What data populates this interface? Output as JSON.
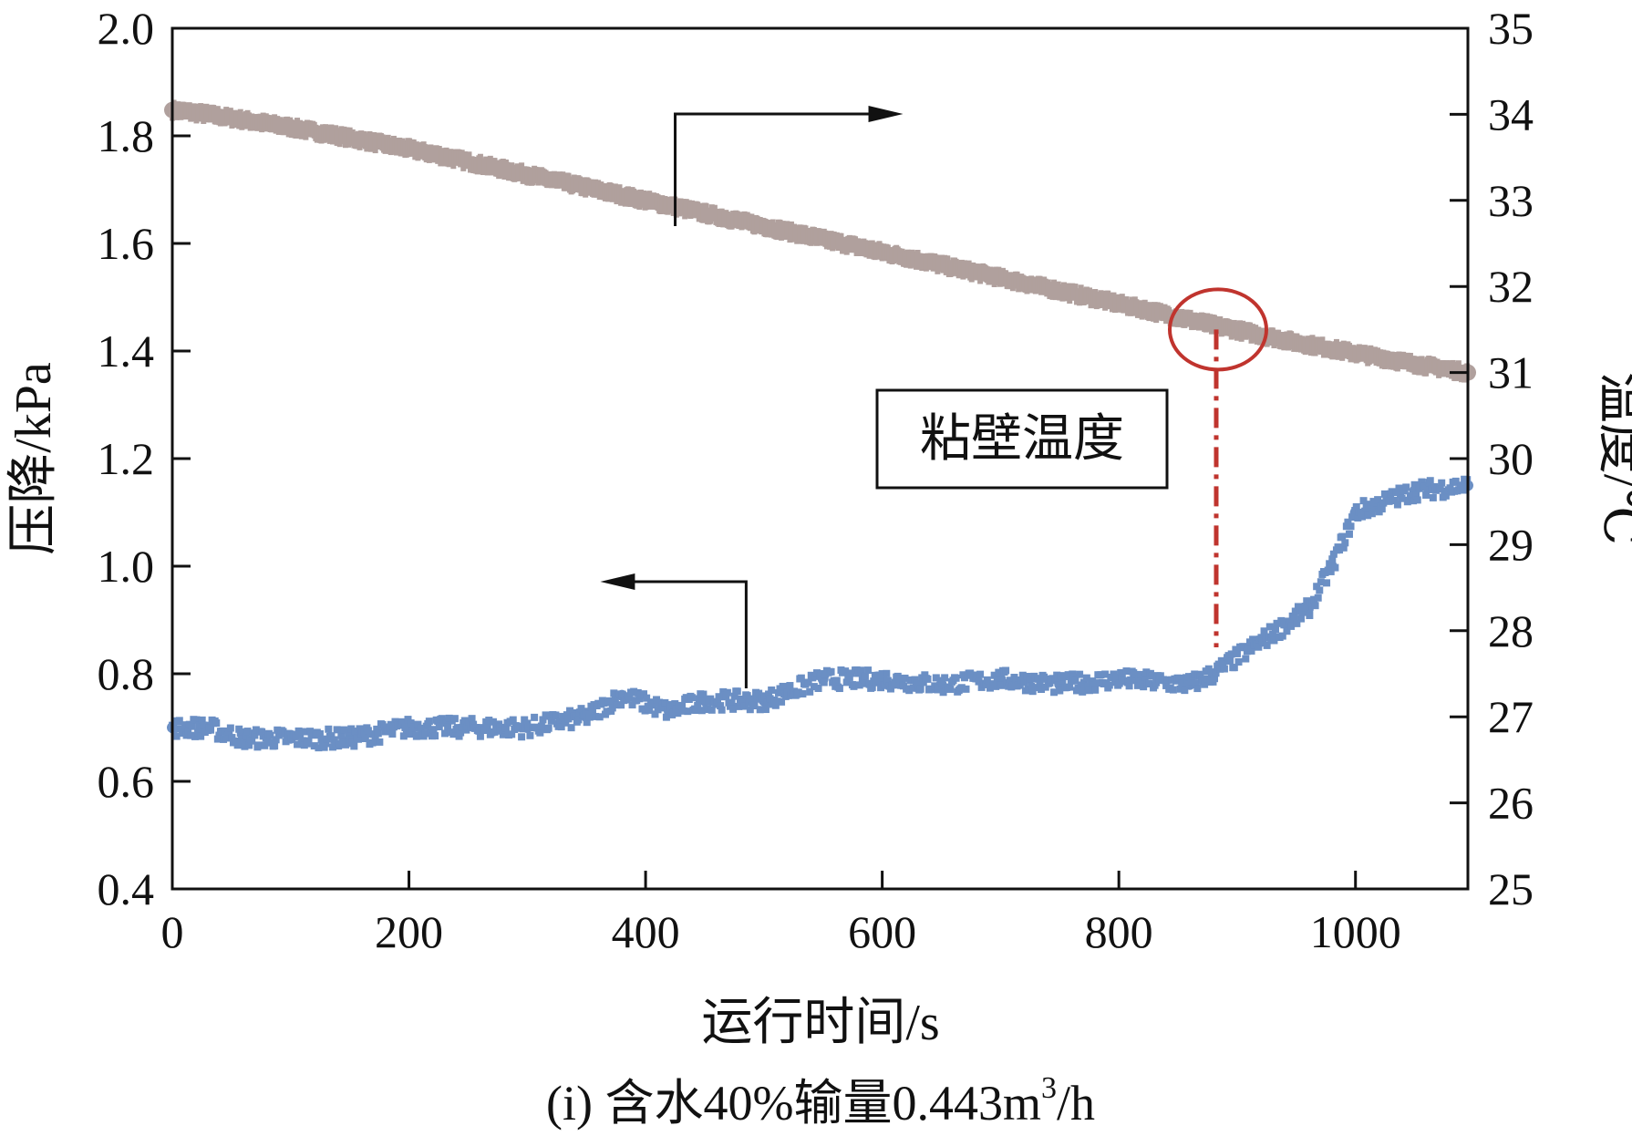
{
  "chart_data": {
    "type": "line",
    "title": "",
    "caption": "(i) 含水40%输量0.443m",
    "caption_sup": "3",
    "caption_tail": "/h",
    "xlabel": "运行时间/s",
    "ylabel_left": "压降/kPa",
    "ylabel_right": "温度/℃",
    "xlim": [
      0,
      1095
    ],
    "ylim_left": [
      0.4,
      2.0
    ],
    "ylim_right": [
      25,
      35
    ],
    "x_ticks": [
      "0",
      "200",
      "400",
      "600",
      "800",
      "1000"
    ],
    "y_left_ticks": [
      "0.4",
      "0.6",
      "0.8",
      "1.0",
      "1.2",
      "1.4",
      "1.6",
      "1.8",
      "2.0"
    ],
    "y_right_ticks": [
      "25",
      "26",
      "27",
      "28",
      "29",
      "30",
      "31",
      "32",
      "33",
      "34",
      "35"
    ],
    "grid": false,
    "series": [
      {
        "name": "温度",
        "axis": "right",
        "color": "#b0a09d",
        "x": [
          0,
          30,
          100,
          200,
          300,
          400,
          500,
          600,
          700,
          800,
          880,
          950,
          1050,
          1095
        ],
        "y": [
          34.05,
          34.0,
          33.85,
          33.6,
          33.3,
          33.0,
          32.7,
          32.4,
          32.1,
          31.8,
          31.55,
          31.35,
          31.1,
          31.0
        ]
      },
      {
        "name": "压降",
        "axis": "left",
        "color": "#6b8fc4",
        "x": [
          0,
          30,
          60,
          100,
          150,
          200,
          300,
          350,
          380,
          420,
          450,
          500,
          550,
          600,
          650,
          700,
          750,
          800,
          860,
          880,
          920,
          960,
          980,
          1000,
          1050,
          1095
        ],
        "y": [
          0.7,
          0.7,
          0.68,
          0.68,
          0.68,
          0.7,
          0.7,
          0.72,
          0.76,
          0.73,
          0.75,
          0.75,
          0.79,
          0.79,
          0.78,
          0.79,
          0.78,
          0.79,
          0.78,
          0.8,
          0.86,
          0.92,
          1.0,
          1.1,
          1.14,
          1.15
        ]
      }
    ],
    "annotations": {
      "label": "粘壁温度",
      "marker_x": 880,
      "marker_temp": 31.5,
      "marker_color": "#c0342e",
      "arrow_right_label_x": 425,
      "arrow_left_label_x": 485
    }
  }
}
